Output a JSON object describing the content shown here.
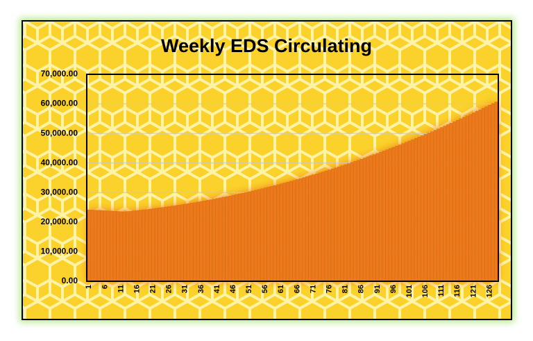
{
  "chart_data": {
    "type": "bar",
    "title": "Weekly EDS Circulating",
    "categories": [
      "1",
      null,
      null,
      null,
      null,
      "6",
      null,
      null,
      null,
      null,
      "11",
      null,
      null,
      null,
      null,
      "16",
      null,
      null,
      null,
      null,
      "21",
      null,
      null,
      null,
      null,
      "26",
      null,
      null,
      null,
      null,
      "31",
      null,
      null,
      null,
      null,
      "36",
      null,
      null,
      null,
      null,
      "41",
      null,
      null,
      null,
      null,
      "46",
      null,
      null,
      null,
      null,
      "51",
      null,
      null,
      null,
      null,
      "56",
      null,
      null,
      null,
      null,
      "61",
      null,
      null,
      null,
      null,
      "66",
      null,
      null,
      null,
      null,
      "71",
      null,
      null,
      null,
      null,
      "76",
      null,
      null,
      null,
      null,
      "81",
      null,
      null,
      null,
      null,
      "86",
      null,
      null,
      null,
      null,
      "91",
      null,
      null,
      null,
      null,
      "96",
      null,
      null,
      null,
      null,
      "101",
      null,
      null,
      null,
      null,
      "106",
      null,
      null,
      null,
      null,
      "111",
      null,
      null,
      null,
      null,
      "116",
      null,
      null,
      null,
      null,
      "121",
      null,
      null,
      null,
      null,
      "126",
      null,
      null
    ],
    "values": [
      24160,
      24100,
      24040,
      23980,
      23920,
      23860,
      23800,
      23740,
      23680,
      23620,
      23560,
      23500,
      23600,
      23710,
      23820,
      23930,
      24050,
      24170,
      24290,
      24420,
      24550,
      24690,
      24830,
      24970,
      25120,
      25270,
      25430,
      25590,
      25750,
      25920,
      26090,
      26260,
      26440,
      26620,
      26810,
      26990,
      27190,
      27380,
      27590,
      27790,
      28000,
      28210,
      28430,
      28650,
      28870,
      29100,
      29330,
      29560,
      29800,
      30040,
      30290,
      30540,
      30790,
      31050,
      31310,
      31580,
      31850,
      32120,
      32400,
      32680,
      32960,
      33250,
      33540,
      33840,
      34140,
      34440,
      34750,
      35060,
      35370,
      35690,
      36010,
      36340,
      36670,
      37000,
      37340,
      37680,
      38030,
      38380,
      38730,
      39090,
      39450,
      39810,
      40180,
      40550,
      40930,
      41300,
      41690,
      42070,
      42470,
      42860,
      43260,
      43660,
      44070,
      44480,
      44890,
      45310,
      45730,
      46150,
      46580,
      47010,
      47450,
      47890,
      48330,
      48780,
      49230,
      49690,
      50150,
      50610,
      51080,
      51550,
      52020,
      52500,
      52980,
      53470,
      53960,
      54450,
      54950,
      55450,
      55950,
      56460,
      56970,
      57490,
      58010,
      58530,
      59060,
      59590,
      60130,
      60670
    ],
    "color": "#ec7a1c",
    "ylim": [
      0,
      70000
    ],
    "yticks": [
      {
        "value": 0,
        "label": "0.00"
      },
      {
        "value": 10000,
        "label": "10,000.00"
      },
      {
        "value": 20000,
        "label": "20,000.00"
      },
      {
        "value": 30000,
        "label": "30,000.00"
      },
      {
        "value": 40000,
        "label": "40,000.00"
      },
      {
        "value": 50000,
        "label": "50,000.00"
      },
      {
        "value": 60000,
        "label": "60,000.00"
      },
      {
        "value": 70000,
        "label": "70,000.00"
      }
    ],
    "grid": true
  }
}
